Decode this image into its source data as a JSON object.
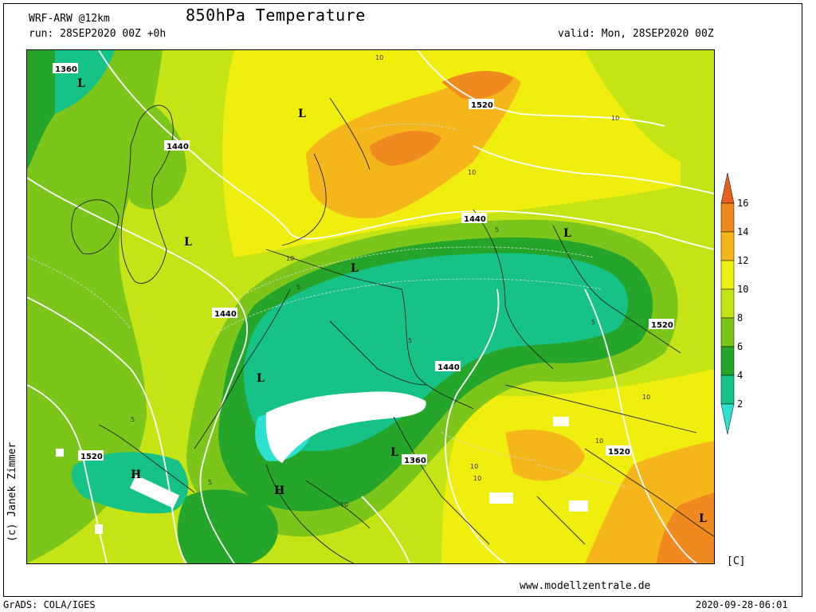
{
  "header": {
    "model": "WRF-ARW @12km",
    "run": "run: 28SEP2020 00Z +0h",
    "title": "850hPa Temperature",
    "valid": "valid: Mon, 28SEP2020 00Z"
  },
  "footer": {
    "website": "www.modellzentrale.de",
    "unit": "[C]",
    "software": "GrADS: COLA/IGES",
    "timestamp": "2020-09-28-06:01",
    "credit": "(c) Janek Zimmer"
  },
  "legend": {
    "ticks": [
      "16",
      "14",
      "12",
      "10",
      "8",
      "6",
      "4",
      "2"
    ],
    "colors": [
      "#e8601c",
      "#f08a1e",
      "#f5b61c",
      "#f0ee0e",
      "#c4e416",
      "#7cc61c",
      "#25a52a",
      "#17c287",
      "#2ee0cf"
    ]
  },
  "map": {
    "colors": {
      "orange_dark": "#e8601c",
      "orange": "#f08a1e",
      "orange_light": "#f5b61c",
      "yellow": "#f0ee0e",
      "yellow_green": "#c4e416",
      "light_green": "#7cc61c",
      "green": "#25a52a",
      "teal": "#17c287",
      "cyan": "#2ee0cf",
      "snow": "#ffffff"
    },
    "height_contours": [
      "1360",
      "1440",
      "1440",
      "1440",
      "1440",
      "1520",
      "1520",
      "1520",
      "1520",
      "1360"
    ],
    "temp_labels": [
      "10",
      "10",
      "10",
      "10",
      "10",
      "10",
      "10",
      "5",
      "5",
      "5",
      "5",
      "5",
      "5",
      "10",
      "10"
    ],
    "pressure_centers": [
      "L",
      "L",
      "L",
      "L",
      "L",
      "L",
      "L",
      "H",
      "H",
      "L"
    ]
  }
}
